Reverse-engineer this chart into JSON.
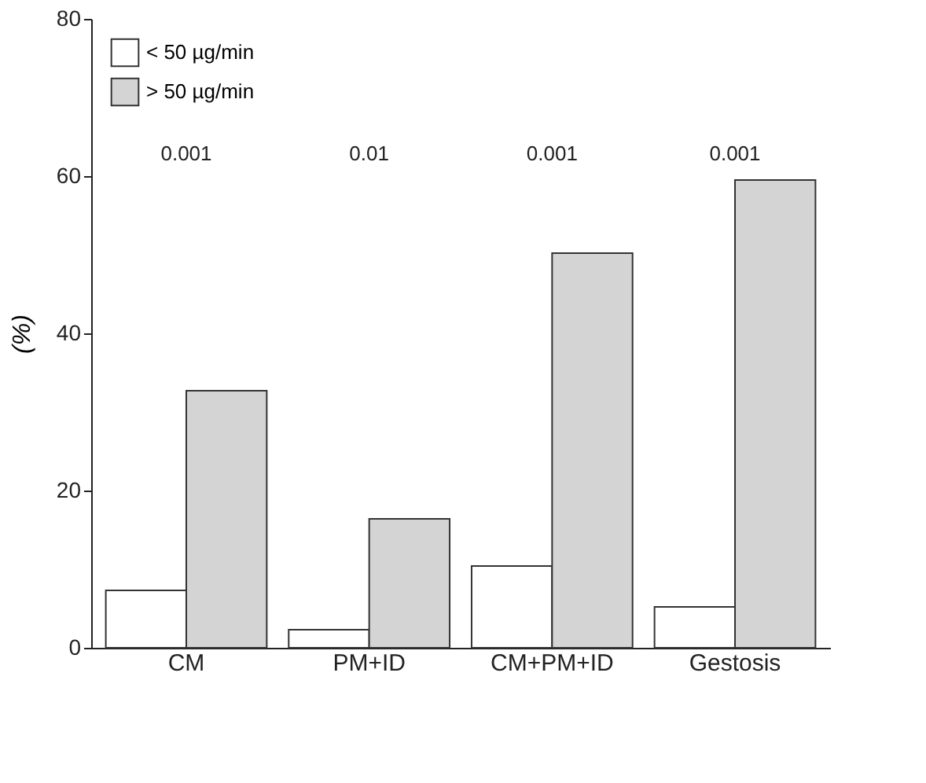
{
  "chart_data": {
    "type": "bar",
    "ylabel": "(%)",
    "categories": [
      "CM",
      "PM+ID",
      "CM+PM+ID",
      "Gestosis"
    ],
    "series": [
      {
        "name": "< 50 µg/min",
        "color": "#ffffff",
        "values": [
          7.3,
          2.3,
          10.4,
          5.2
        ]
      },
      {
        "name": "> 50 µg/min",
        "color": "#d4d4d4",
        "values": [
          32.7,
          16.4,
          50.2,
          59.5
        ]
      }
    ],
    "ylim": [
      0,
      80
    ],
    "yticks": [
      0,
      20,
      40,
      60,
      80
    ],
    "grid": false,
    "legend": "top left",
    "annotations": [
      "0.001",
      "0.01",
      "0.001",
      "0.001"
    ]
  }
}
